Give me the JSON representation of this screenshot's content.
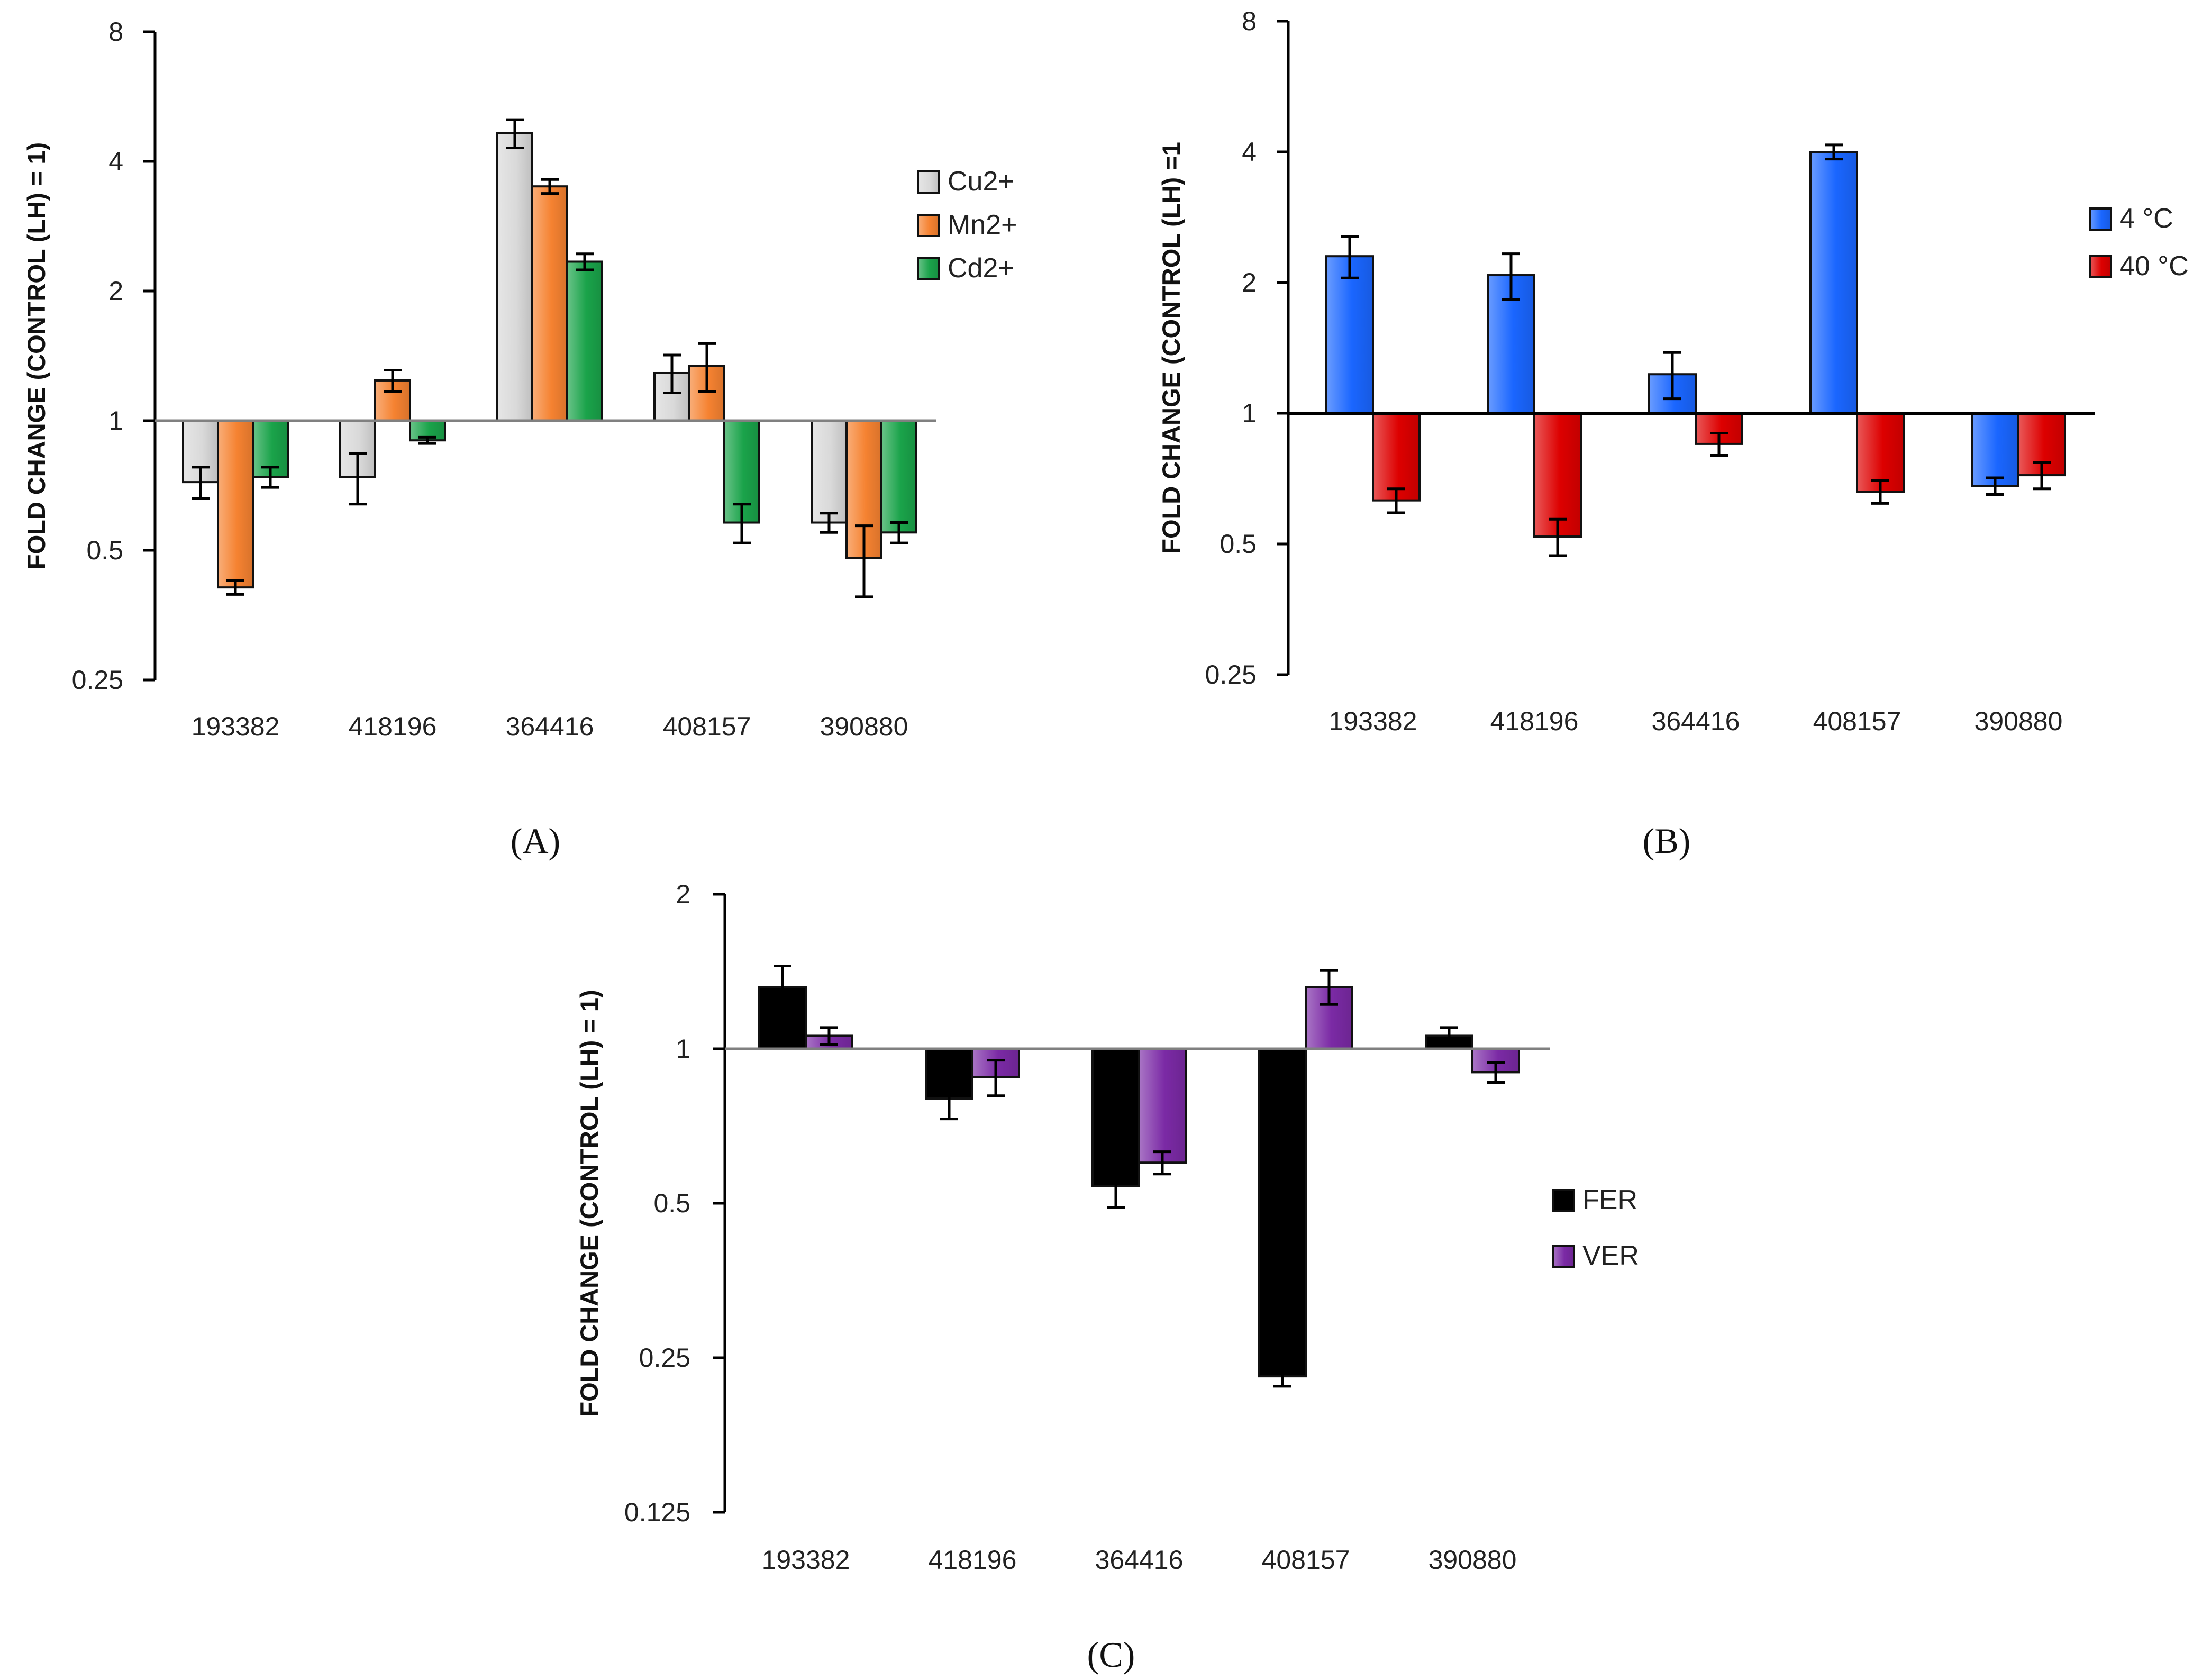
{
  "chart_data": [
    {
      "type": "bar",
      "panel_label": "(A)",
      "ylabel": "FOLD CHANGE (CONTROL (LH) = 1)",
      "yscale": "log2",
      "ylim": [
        0.25,
        8
      ],
      "yticks": [
        0.25,
        0.5,
        1,
        2,
        4,
        8
      ],
      "ytick_labels": [
        "0.25",
        "0.5",
        "1",
        "2",
        "4",
        "8"
      ],
      "baseline": 1,
      "baseline_color": "#808080",
      "categories": [
        "193382",
        "418196",
        "364416",
        "408157",
        "390880"
      ],
      "legend_position": "right",
      "series": [
        {
          "name": "Cu2+",
          "color": "#d9d9d9",
          "values": [
            0.72,
            0.74,
            4.65,
            1.29,
            0.58
          ],
          "errors": [
            0.06,
            0.1,
            0.35,
            0.13,
            0.03
          ]
        },
        {
          "name": "Mn2+",
          "color": "#f58231",
          "values": [
            0.41,
            1.24,
            3.5,
            1.34,
            0.48
          ],
          "errors": [
            0.015,
            0.07,
            0.13,
            0.17,
            0.09
          ]
        },
        {
          "name": "Cd2+",
          "color": "#1aa34a",
          "values": [
            0.74,
            0.9,
            2.34,
            0.58,
            0.55
          ],
          "errors": [
            0.04,
            0.015,
            0.1,
            0.06,
            0.03
          ]
        }
      ]
    },
    {
      "type": "bar",
      "panel_label": "(B)",
      "ylabel": "FOLD CHANGE (CONTROL (LH) =1",
      "yscale": "log2",
      "ylim": [
        0.25,
        8
      ],
      "yticks": [
        0.25,
        0.5,
        1,
        2,
        4,
        8
      ],
      "ytick_labels": [
        "0.25",
        "0.5",
        "1",
        "2",
        "4",
        "8"
      ],
      "baseline": 1,
      "baseline_color": "#000000",
      "categories": [
        "193382",
        "418196",
        "364416",
        "408157",
        "390880"
      ],
      "legend_position": "right",
      "series": [
        {
          "name": "4 °C",
          "color": "#1a66ff",
          "values": [
            2.3,
            2.08,
            1.23,
            4.0,
            0.68
          ],
          "errors": [
            0.25,
            0.25,
            0.15,
            0.15,
            0.03
          ]
        },
        {
          "name": "40 °C",
          "color": "#dd0000",
          "values": [
            0.63,
            0.52,
            0.85,
            0.66,
            0.72
          ],
          "errors": [
            0.04,
            0.05,
            0.05,
            0.04,
            0.05
          ]
        }
      ]
    },
    {
      "type": "bar",
      "panel_label": "(C)",
      "ylabel": "FOLD CHANGE (CONTROL (LH) = 1)",
      "yscale": "log2",
      "ylim": [
        0.125,
        2
      ],
      "yticks": [
        0.125,
        0.25,
        0.5,
        1,
        2
      ],
      "ytick_labels": [
        "0.125",
        "0.25",
        "0.5",
        "1",
        "2"
      ],
      "baseline": 1,
      "baseline_color": "#808080",
      "categories": [
        "193382",
        "418196",
        "364416",
        "408157",
        "390880"
      ],
      "legend_position": "right",
      "series": [
        {
          "name": "FER",
          "color": "#000000",
          "values": [
            1.32,
            0.8,
            0.54,
            0.23,
            1.06
          ],
          "errors": [
            0.13,
            0.07,
            0.05,
            0.01,
            0.04
          ]
        },
        {
          "name": "VER",
          "color": "#7b2aa5",
          "values": [
            1.06,
            0.88,
            0.6,
            1.32,
            0.9
          ],
          "errors": [
            0.04,
            0.07,
            0.03,
            0.1,
            0.04
          ]
        }
      ]
    }
  ]
}
